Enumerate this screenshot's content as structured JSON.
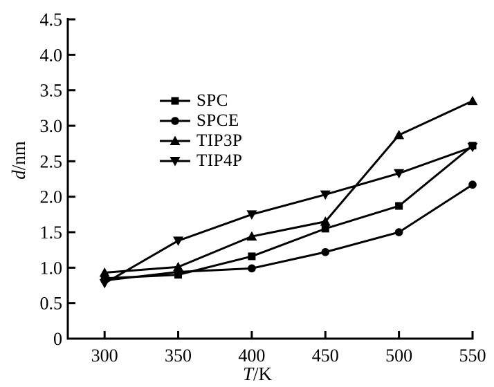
{
  "figure": {
    "background": "#ffffff",
    "ink_color": "#000000"
  },
  "axes": {
    "ylabel": {
      "var": "d",
      "unit": "/nm"
    },
    "xlabel": {
      "var": "T",
      "unit": "/K"
    }
  },
  "chart_data": {
    "type": "line",
    "title": "",
    "xlabel": "T/K",
    "ylabel": "d/nm",
    "x": [
      300,
      350,
      400,
      450,
      500,
      550
    ],
    "xlim": [
      275,
      550
    ],
    "ylim": [
      0,
      4.5
    ],
    "xticks": [
      300,
      350,
      400,
      450,
      500,
      550
    ],
    "xtick_labels": [
      "300",
      "350",
      "400",
      "450",
      "500",
      "550"
    ],
    "yticks": [
      0,
      0.5,
      1.0,
      1.5,
      2.0,
      2.5,
      3.0,
      3.5,
      4.0,
      4.5
    ],
    "ytick_labels": [
      "0",
      "0.5",
      "1.0",
      "1.5",
      "2.0",
      "2.5",
      "3.0",
      "3.5",
      "4.0",
      "4.5"
    ],
    "grid": false,
    "legend_position": "inside-upper-left",
    "series": [
      {
        "name": "SPC",
        "marker": "square",
        "color": "#000000",
        "values": [
          0.85,
          0.9,
          1.16,
          1.55,
          1.87,
          2.72
        ]
      },
      {
        "name": "SPCE",
        "marker": "circle",
        "color": "#000000",
        "values": [
          0.82,
          0.94,
          0.99,
          1.22,
          1.5,
          2.17
        ]
      },
      {
        "name": "TIP3P",
        "marker": "triangle-up",
        "color": "#000000",
        "values": [
          0.93,
          1.01,
          1.44,
          1.65,
          2.87,
          3.35
        ]
      },
      {
        "name": "TIP4P",
        "marker": "triangle-down",
        "color": "#000000",
        "values": [
          0.78,
          1.38,
          1.75,
          2.03,
          2.33,
          2.7
        ]
      }
    ]
  }
}
